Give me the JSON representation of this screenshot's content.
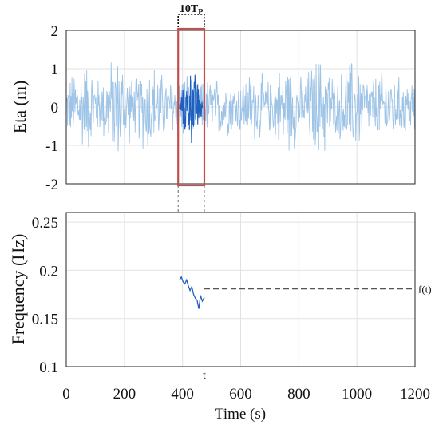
{
  "chart_data": [
    {
      "type": "line",
      "panel": "top",
      "xlabel": "",
      "ylabel": "Eta  (m)",
      "xlim": [
        0,
        1200
      ],
      "ylim": [
        -2,
        2
      ],
      "xticks": [
        0,
        200,
        400,
        600,
        800,
        1000,
        1200
      ],
      "yticks": [
        -2,
        -1,
        0,
        1,
        2
      ],
      "ytick_labels": [
        "-2",
        "-1",
        "0",
        "1",
        "2"
      ],
      "grid": true,
      "series": [
        {
          "color": "#9dc3e6",
          "approx_amplitude_m": 1.5,
          "x_range": [
            0,
            1200
          ]
        },
        {
          "color": "#1f5fbf",
          "x_range": [
            385,
            475
          ],
          "approx_amplitude_m": 1.5
        }
      ],
      "highlight_window": {
        "x_range": [
          385,
          475
        ],
        "color": "#c0504d"
      },
      "annotation": {
        "base": "10T",
        "sub": "P"
      }
    },
    {
      "type": "line",
      "panel": "bottom",
      "xlabel": "Time (s)",
      "ylabel": "Frequency  (Hz)",
      "xlim": [
        0,
        1200
      ],
      "ylim": [
        0.1,
        0.26
      ],
      "xticks": [
        0,
        200,
        400,
        600,
        800,
        1000,
        1200
      ],
      "xtick_labels": [
        "0",
        "200",
        "400",
        "600",
        "800",
        "1000",
        "1200"
      ],
      "yticks": [
        0.1,
        0.15,
        0.2,
        0.25
      ],
      "ytick_labels": [
        "0.1",
        "0.15",
        "0.2",
        "0.25"
      ],
      "grid": true,
      "series": [
        {
          "color": "#1f5fbf",
          "x": [
            390,
            396,
            402,
            408,
            414,
            420,
            426,
            432,
            438,
            444,
            450,
            456,
            462,
            468,
            475
          ],
          "y": [
            0.19,
            0.193,
            0.188,
            0.186,
            0.19,
            0.184,
            0.179,
            0.183,
            0.175,
            0.171,
            0.169,
            0.16,
            0.174,
            0.168,
            0.172
          ]
        }
      ],
      "reference_line": {
        "y": 0.181,
        "x_range": [
          475,
          1200
        ],
        "label": "f(t)",
        "color": "#555555"
      },
      "t_marker": {
        "x": 475,
        "label": "t"
      }
    }
  ]
}
